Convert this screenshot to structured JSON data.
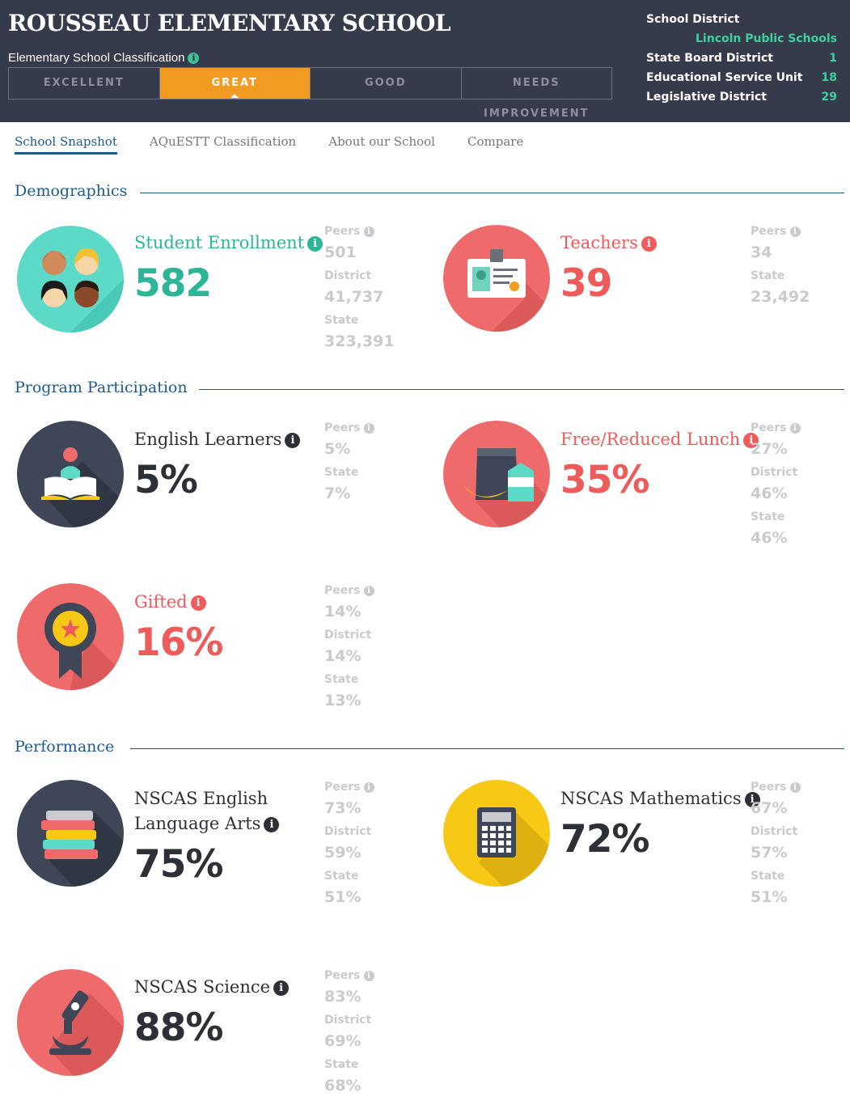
{
  "header": {
    "school_name": "ROUSSEAU ELEMENTARY SCHOOL",
    "classification_label": "Elementary School Classification",
    "info_icon": "i",
    "ratings": [
      "EXCELLENT",
      "GREAT",
      "GOOD",
      "NEEDS IMPROVEMENT"
    ],
    "selected_rating": "GREAT",
    "school_district_label": "School District",
    "school_district_value": "Lincoln Public Schools",
    "state_board_label": "State Board District",
    "state_board_value": "1",
    "esu_label": "Educational Service Unit",
    "esu_value": "18",
    "legislative_label": "Legislative District",
    "legislative_value": "29"
  },
  "tabs": [
    "School Snapshot",
    "AQuESTT Classification",
    "About our School",
    "Compare"
  ],
  "active_tab": "School Snapshot",
  "sections": {
    "demographics": "Demographics",
    "program": "Program Participation",
    "performance": "Performance"
  },
  "labels": {
    "peers": "Peers",
    "district": "District",
    "state": "State"
  },
  "metrics": {
    "enrollment": {
      "name": "Student Enrollment",
      "value": "582",
      "peers": "501",
      "district": "41,737",
      "state": "323,391",
      "icon": "students-icon",
      "color": "#2cb596"
    },
    "teachers": {
      "name": "Teachers",
      "value": "39",
      "peers": "34",
      "state": "23,492",
      "icon": "id-badge-icon",
      "color": "#ef5a5a"
    },
    "english_learners": {
      "name": "English Learners",
      "value": "5%",
      "peers": "5%",
      "state": "7%",
      "icon": "reader-book-icon",
      "color": "#2e3038"
    },
    "lunch": {
      "name": "Free/Reduced Lunch",
      "value": "35%",
      "peers": "27%",
      "district": "46%",
      "state": "46%",
      "icon": "lunch-bag-icon",
      "color": "#ef5a5a"
    },
    "gifted": {
      "name": "Gifted",
      "value": "16%",
      "peers": "14%",
      "district": "14%",
      "state": "13%",
      "icon": "award-ribbon-icon",
      "color": "#ef5a5a"
    },
    "ela": {
      "name_line1": "NSCAS English",
      "name_line2": "Language Arts",
      "value": "75%",
      "peers": "73%",
      "district": "59%",
      "state": "51%",
      "icon": "books-stack-icon",
      "color": "#2e3038"
    },
    "math": {
      "name": "NSCAS Mathematics",
      "value": "72%",
      "peers": "67%",
      "district": "57%",
      "state": "51%",
      "icon": "calculator-icon",
      "color": "#2e3038"
    },
    "science": {
      "name": "NSCAS Science",
      "value": "88%",
      "peers": "83%",
      "district": "69%",
      "state": "68%",
      "icon": "microscope-icon",
      "color": "#2e3038"
    }
  }
}
